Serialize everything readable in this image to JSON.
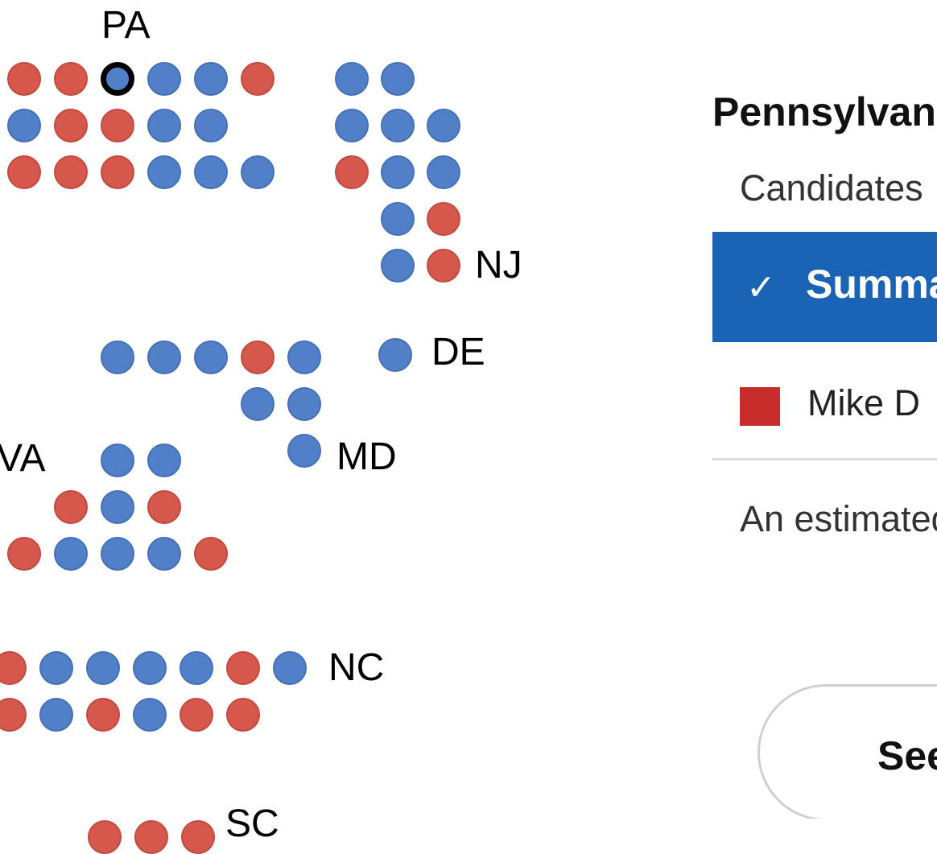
{
  "map": {
    "colors": {
      "dem": "#5180c9",
      "rep": "#d6584c"
    },
    "groups": [
      {
        "state": "PA",
        "label": "PA",
        "rows": [
          [
            "R",
            "R",
            "D*",
            "D",
            "D",
            "R"
          ],
          [
            "D",
            "R",
            "R",
            "D",
            "D"
          ],
          [
            "R",
            "R",
            "R",
            "D",
            "D",
            "D"
          ]
        ]
      },
      {
        "state": "NJ",
        "label": "NJ",
        "rows": [
          [
            "D",
            "D"
          ],
          [
            "D",
            "D",
            "D"
          ],
          [
            "R",
            "D",
            "D"
          ],
          [
            "",
            "D",
            "R"
          ],
          [
            "",
            "D",
            "R"
          ]
        ]
      },
      {
        "state": "MD",
        "label": "MD",
        "rows": [
          [
            "D",
            "D",
            "D",
            "R",
            "D"
          ],
          [
            "",
            "",
            "",
            "D",
            "D"
          ],
          [
            "",
            "",
            "",
            "",
            "D"
          ]
        ]
      },
      {
        "state": "DE",
        "label": "DE",
        "rows": [
          [
            "D"
          ]
        ]
      },
      {
        "state": "VA",
        "label": "VA",
        "rows": [
          [
            "",
            "",
            "D",
            "D"
          ],
          [
            "",
            "R",
            "D",
            "R"
          ],
          [
            "R",
            "D",
            "D",
            "D",
            "R"
          ]
        ]
      },
      {
        "state": "NC",
        "label": "NC",
        "rows": [
          [
            "R",
            "D",
            "D",
            "D",
            "D",
            "R",
            "D"
          ],
          [
            "R",
            "D",
            "R",
            "D",
            "R",
            "R"
          ]
        ]
      },
      {
        "state": "SC",
        "label": "SC",
        "rows": [
          [
            "R",
            "R",
            "R"
          ]
        ]
      }
    ]
  },
  "panel": {
    "title": "Pennsylvania",
    "candidates_header": "Candidates",
    "summary_label": "Summary",
    "check_icon": "checkmark-icon",
    "candidate_name": "Mike D",
    "candidate_color": "#c72d2a",
    "note": "An estimated … counted.",
    "button_label": "See"
  }
}
